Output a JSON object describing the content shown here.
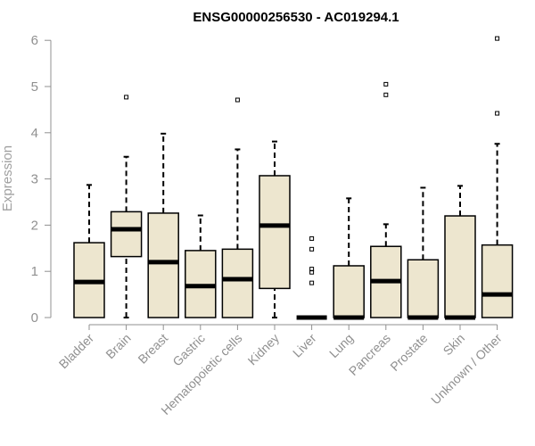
{
  "chart_data": {
    "type": "box",
    "title": "ENSG00000256530 - AC019294.1",
    "ylabel": "Expression",
    "xlabel": "",
    "ylim": [
      0,
      6
    ],
    "yticks": [
      0,
      1,
      2,
      3,
      4,
      5,
      6
    ],
    "categories": [
      "Bladder",
      "Brain",
      "Breast",
      "Gastric",
      "Hematopoietic cells",
      "Kidney",
      "Liver",
      "Lung",
      "Pancreas",
      "Prostate",
      "Skin",
      "Unknown / Other"
    ],
    "boxes": [
      {
        "category": "Bladder",
        "whisker_low": 0,
        "q1": 0,
        "median": 0.77,
        "q3": 1.62,
        "whisker_high": 2.87,
        "outliers": []
      },
      {
        "category": "Brain",
        "whisker_low": 0,
        "q1": 1.32,
        "median": 1.91,
        "q3": 2.29,
        "whisker_high": 3.48,
        "outliers": [
          4.77
        ]
      },
      {
        "category": "Breast",
        "whisker_low": 0,
        "q1": 0,
        "median": 1.2,
        "q3": 2.26,
        "whisker_high": 3.98,
        "outliers": []
      },
      {
        "category": "Gastric",
        "whisker_low": 0,
        "q1": 0,
        "median": 0.68,
        "q3": 1.45,
        "whisker_high": 2.21,
        "outliers": []
      },
      {
        "category": "Hematopoietic cells",
        "whisker_low": 0,
        "q1": 0,
        "median": 0.83,
        "q3": 1.48,
        "whisker_high": 3.64,
        "outliers": [
          4.71
        ]
      },
      {
        "category": "Kidney",
        "whisker_low": 0,
        "q1": 0.63,
        "median": 1.99,
        "q3": 3.07,
        "whisker_high": 3.81,
        "outliers": []
      },
      {
        "category": "Liver",
        "whisker_low": 0,
        "q1": 0,
        "median": 0,
        "q3": 0,
        "whisker_high": 0,
        "outliers": [
          0.75,
          0.98,
          1.05,
          1.48,
          1.71
        ]
      },
      {
        "category": "Lung",
        "whisker_low": 0,
        "q1": 0,
        "median": 0,
        "q3": 1.12,
        "whisker_high": 2.58,
        "outliers": []
      },
      {
        "category": "Pancreas",
        "whisker_low": 0,
        "q1": 0,
        "median": 0.79,
        "q3": 1.54,
        "whisker_high": 2.02,
        "outliers": [
          4.82,
          5.05
        ]
      },
      {
        "category": "Prostate",
        "whisker_low": 0,
        "q1": 0,
        "median": 0,
        "q3": 1.25,
        "whisker_high": 2.81,
        "outliers": []
      },
      {
        "category": "Skin",
        "whisker_low": 0,
        "q1": 0,
        "median": 0,
        "q3": 2.2,
        "whisker_high": 2.85,
        "outliers": []
      },
      {
        "category": "Unknown / Other",
        "whisker_low": 0,
        "q1": 0,
        "median": 0.5,
        "q3": 1.57,
        "whisker_high": 3.76,
        "outliers": [
          4.42,
          6.04
        ]
      }
    ],
    "box_fill": "#ede6cf",
    "box_stroke": "#000000",
    "axis_color": "#909090",
    "grid": false,
    "legend": "none"
  }
}
